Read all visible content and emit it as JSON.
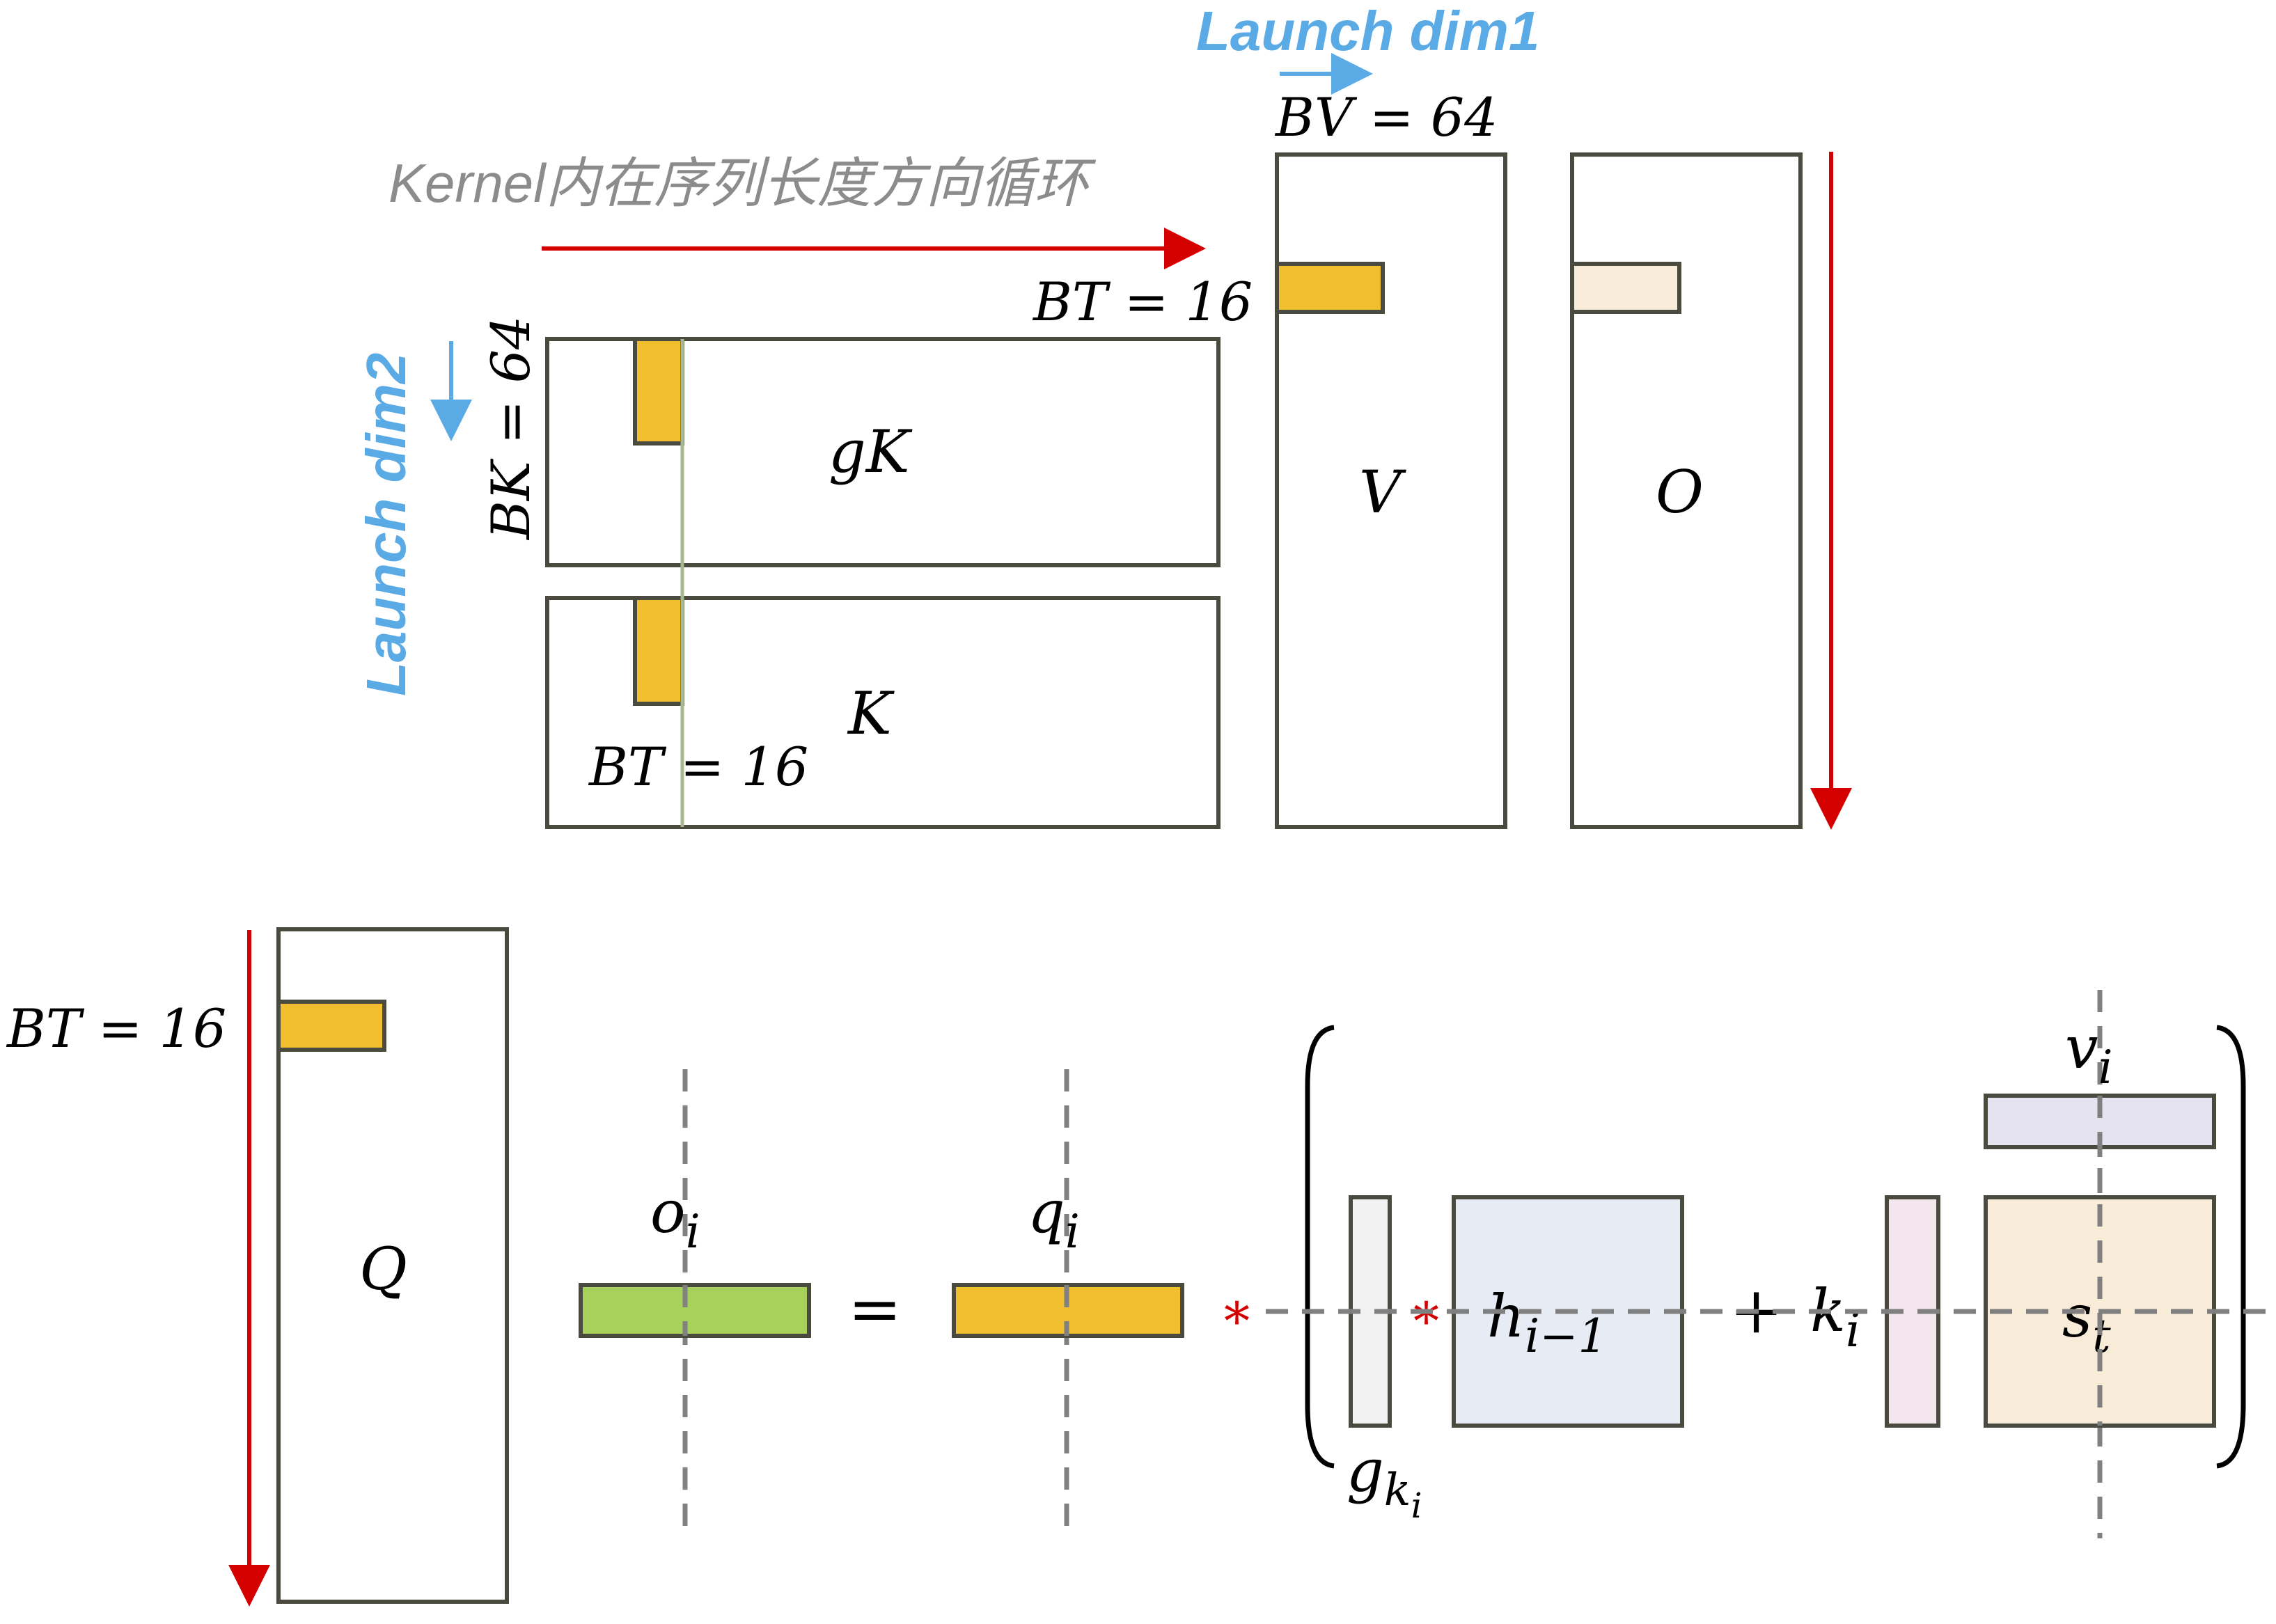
{
  "colors": {
    "matrix_stroke": "#4a4a3e",
    "block_yellow": "#f0be2e",
    "block_green": "#a6d15a",
    "block_cream": "#f8ecd9",
    "block_lavender": "#e6e3f1",
    "block_blue": "#e6ebf4",
    "block_pink": "#f3e6ec",
    "block_gray": "#f2f2f2",
    "arrow_red": "#d40000",
    "arrow_blue": "#5aaae6",
    "caption_gray": "#8c8c8c",
    "dash_gray": "#808080",
    "asterisk_red": "#d40000"
  },
  "captions": {
    "kernel_loop": "Kernel内在序列长度方向循环",
    "launch_dim1": "Launch dim1",
    "launch_dim2": "Launch dim2"
  },
  "dims": {
    "bv": "BV = 64",
    "bk": "BK = 64",
    "bt_v": "BT = 16",
    "bt_k": "BT = 16",
    "bt_q": "BT = 16"
  },
  "matrices": {
    "gk": "gK",
    "k": "K",
    "v": "V",
    "o": "O",
    "q": "Q"
  },
  "equation": {
    "o_base": "o",
    "o_sub": "i",
    "equals": "=",
    "q_base": "q",
    "q_sub": "i",
    "asterisk_1": "*",
    "asterisk_2": "*",
    "g_base": "g",
    "g_sub": "k",
    "g_subsub": "i",
    "h_base": "h",
    "h_sub": "i−1",
    "plus": "+",
    "k_base": "k",
    "k_sub": "i",
    "v_base": "v",
    "v_sub": "i",
    "s_base": "s",
    "s_sub": "t"
  }
}
